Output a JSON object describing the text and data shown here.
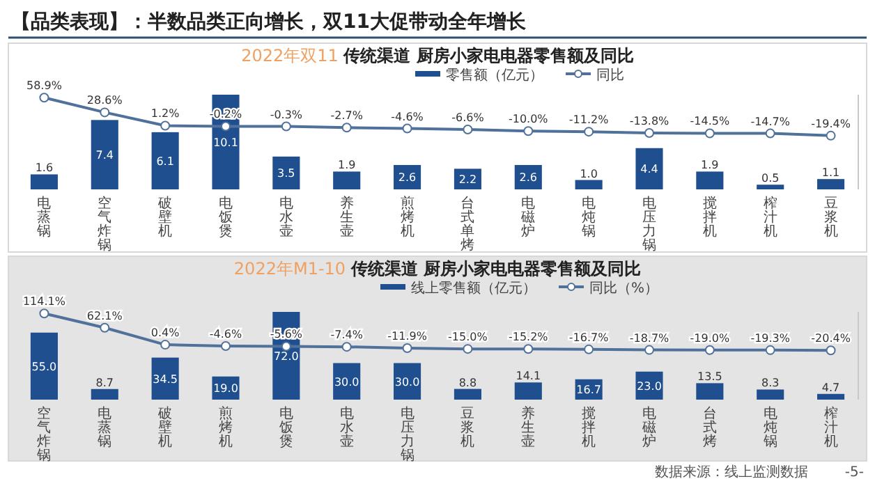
{
  "chart_data": [
    {
      "type": "bar",
      "title": "2022年双11 传统渠道 厨房小家电电器零售额及同比",
      "legend": "top",
      "tick_labels": "x",
      "y2lim": [
        -130,
        65
      ],
      "annotations": [
        "【品类表现】：半数品类正向增长，双11大促带动全年增长"
      ],
      "categories": [
        "电蒸锅",
        "空气炸锅",
        "破壁机",
        "电饭煲",
        "电水壶",
        "养生壶",
        "煎烤机",
        "台式单烤",
        "电磁炉",
        "电炖锅",
        "电压力锅",
        "搅拌机",
        "榨汁机",
        "豆浆机"
      ],
      "series": [
        {
          "name": "零售额（亿元）",
          "color": "#1f4f8f",
          "values": [
            1.6,
            7.4,
            6.1,
            10.1,
            3.5,
            1.9,
            2.6,
            2.2,
            2.6,
            1.0,
            4.4,
            1.9,
            0.5,
            1.1
          ],
          "value_labels": [
            "1.6",
            "7.4",
            "6.1",
            "10.1",
            "3.5",
            "1.9",
            "2.6",
            "2.2",
            "2.6",
            "1.0",
            "4.4",
            "1.9",
            "0.5",
            "1.1"
          ]
        },
        {
          "name": "同比",
          "type": "line",
          "axis": "y2",
          "marker": "circle",
          "color": "#50719a",
          "values": [
            58.9,
            28.6,
            1.2,
            -0.2,
            -0.3,
            -2.7,
            -4.6,
            -6.6,
            -10.0,
            -11.2,
            -13.8,
            -14.5,
            -14.7,
            -19.4
          ],
          "value_labels": [
            "58.9%",
            "28.6%",
            "1.2%",
            "-0.2%",
            "-0.3%",
            "-2.7%",
            "-4.6%",
            "-6.6%",
            "-10.0%",
            "-11.2%",
            "-13.8%",
            "-14.5%",
            "-14.7%",
            "-19.4%"
          ]
        }
      ]
    },
    {
      "type": "bar",
      "title": "2022年M1-10 传统渠道 厨房小家电电器零售额及同比",
      "legend": "top",
      "tick_labels": "x",
      "y2lim": [
        -200,
        120
      ],
      "annotations": [
        "数据来源：线上监测数据",
        "-5-"
      ],
      "categories": [
        "空气炸锅",
        "电蒸锅",
        "破壁机",
        "煎烤机",
        "电饭煲",
        "电水壶",
        "电压力锅",
        "豆浆机",
        "养生壶",
        "搅拌机",
        "电磁炉",
        "台式烤",
        "电炖锅",
        "榨汁机"
      ],
      "series": [
        {
          "name": "线上零售额（亿元）",
          "color": "#1f4f8f",
          "values": [
            55.0,
            8.7,
            34.5,
            19.0,
            72.0,
            30.0,
            30.0,
            8.8,
            14.1,
            16.7,
            23.0,
            13.5,
            8.3,
            4.7
          ],
          "value_labels": [
            "55.0",
            "8.7",
            "34.5",
            "19.0",
            "72.0",
            "30.0",
            "30.0",
            "8.8",
            "14.1",
            "16.7",
            "23.0",
            "13.5",
            "8.3",
            "4.7"
          ]
        },
        {
          "name": "同比（%）",
          "type": "line",
          "axis": "y2",
          "marker": "circle",
          "color": "#50719a",
          "values": [
            114.1,
            62.1,
            0.4,
            -4.6,
            -5.6,
            -7.4,
            -11.9,
            -15.0,
            -15.2,
            -16.7,
            -18.7,
            -19.0,
            -19.3,
            -20.4
          ],
          "value_labels": [
            "114.1%",
            "62.1%",
            "0.4%",
            "-4.6%",
            "-5.6%",
            "-7.4%",
            "-11.9%",
            "-15.0%",
            "-15.2%",
            "-16.7%",
            "-18.7%",
            "-19.0%",
            "-19.3%",
            "-20.4%"
          ]
        }
      ]
    }
  ]
}
